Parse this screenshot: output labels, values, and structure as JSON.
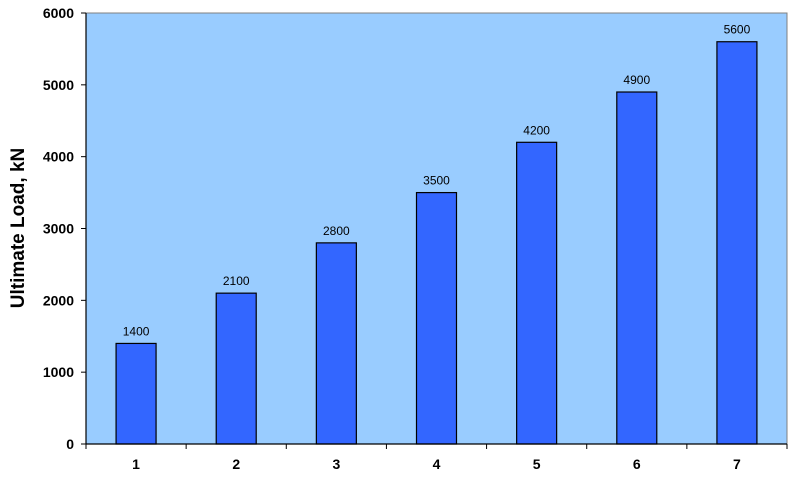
{
  "chart_data": {
    "type": "bar",
    "title": "",
    "xlabel": "",
    "ylabel": "Ultimate Load, kN",
    "categories": [
      "1",
      "2",
      "3",
      "4",
      "5",
      "6",
      "7"
    ],
    "values": [
      1400,
      2100,
      2800,
      3500,
      4200,
      4900,
      5600
    ],
    "data_labels": [
      "1400",
      "2100",
      "2800",
      "3500",
      "4200",
      "4900",
      "5600"
    ],
    "ylim": [
      0,
      6000
    ],
    "yticks": [
      "0",
      "1000",
      "2000",
      "3000",
      "4000",
      "5000",
      "6000"
    ],
    "grid": false,
    "legend": "none",
    "colors": {
      "plot_background": "#99CCFF",
      "bar": "#3366FF",
      "bar_edge": "#000000",
      "plot_border": "#808080"
    }
  }
}
